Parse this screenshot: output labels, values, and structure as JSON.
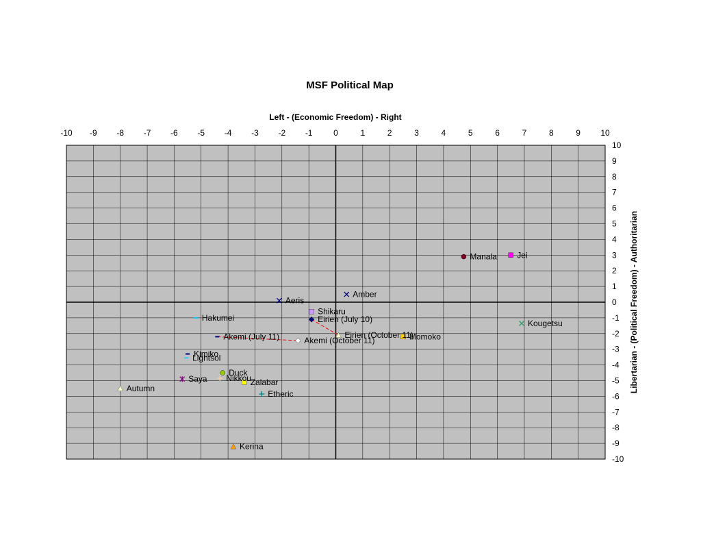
{
  "chart_data": {
    "type": "scatter",
    "title": "MSF Political Map",
    "xlabel": "Left - (Economic Freedom) - Right",
    "ylabel": "Libertarian - (Political Freedom) - Authoritarian",
    "xlim": [
      -10,
      10
    ],
    "ylim": [
      -10,
      10
    ],
    "x_ticks": [
      "-10",
      "-9",
      "-8",
      "-7",
      "-6",
      "-5",
      "-4",
      "-3",
      "-2",
      "-1",
      "0",
      "1",
      "2",
      "3",
      "4",
      "5",
      "6",
      "7",
      "8",
      "9",
      "10"
    ],
    "y_ticks": [
      "10",
      "9",
      "8",
      "7",
      "6",
      "5",
      "4",
      "3",
      "2",
      "1",
      "0",
      "-1",
      "-2",
      "-3",
      "-4",
      "-5",
      "-6",
      "-7",
      "-8",
      "-9",
      "-10"
    ],
    "grid": true,
    "plot_background": "#c0c0c0",
    "points": [
      {
        "name": "Manala",
        "x": 4.75,
        "y": 2.9,
        "marker": "circle",
        "color": "#800020"
      },
      {
        "name": "Jei",
        "x": 6.5,
        "y": 3.0,
        "marker": "square",
        "color": "#ff00ff"
      },
      {
        "name": "Amber",
        "x": 0.4,
        "y": 0.5,
        "marker": "x",
        "color": "#000080"
      },
      {
        "name": "Aeris",
        "x": -2.1,
        "y": 0.1,
        "marker": "x",
        "color": "#000080"
      },
      {
        "name": "Shikaru",
        "x": -0.9,
        "y": -0.6,
        "marker": "square",
        "color": "#cc99ff"
      },
      {
        "name": "Eirien (July 10)",
        "x": -0.9,
        "y": -1.1,
        "marker": "diamond",
        "color": "#000080"
      },
      {
        "name": "Eirien (October 11)",
        "x": 0.1,
        "y": -2.1,
        "marker": "triangle",
        "color": "#ffffcc"
      },
      {
        "name": "Momoko",
        "x": 2.5,
        "y": -2.2,
        "marker": "square",
        "color": "#ffcc00"
      },
      {
        "name": "Kougetsu",
        "x": 6.9,
        "y": -1.35,
        "marker": "x",
        "color": "#339966"
      },
      {
        "name": "Hakumei",
        "x": -5.2,
        "y": -1.0,
        "marker": "dash",
        "color": "#00ccff"
      },
      {
        "name": "Akemi (July 11)",
        "x": -4.4,
        "y": -2.2,
        "marker": "dash",
        "color": "#000080"
      },
      {
        "name": "Akemi (October 11)",
        "x": -1.4,
        "y": -2.45,
        "marker": "diamond",
        "color": "#ffffff"
      },
      {
        "name": "Kimiko",
        "x": -5.5,
        "y": -3.3,
        "marker": "dash",
        "color": "#000080"
      },
      {
        "name": "Lightsol",
        "x": -5.55,
        "y": -3.55,
        "marker": "dash",
        "color": "#33ccff"
      },
      {
        "name": "Duck",
        "x": -4.2,
        "y": -4.5,
        "marker": "circle",
        "color": "#99cc00"
      },
      {
        "name": "Nikkou",
        "x": -4.3,
        "y": -4.85,
        "marker": "plus",
        "color": "#ffcc99"
      },
      {
        "name": "Zalabar",
        "x": -3.4,
        "y": -5.1,
        "marker": "square",
        "color": "#ffff00"
      },
      {
        "name": "Saya",
        "x": -5.7,
        "y": -4.9,
        "marker": "star",
        "color": "#800080"
      },
      {
        "name": "Autumn",
        "x": -8.0,
        "y": -5.5,
        "marker": "triangle",
        "color": "#ffffcc"
      },
      {
        "name": "Etheric",
        "x": -2.75,
        "y": -5.85,
        "marker": "plus",
        "color": "#008080"
      },
      {
        "name": "Kerina",
        "x": -3.8,
        "y": -9.2,
        "marker": "triangle",
        "color": "#ff9900"
      }
    ],
    "movement_lines": [
      {
        "from": "Eirien (July 10)",
        "to": "Eirien (October 11)",
        "color": "#ff0000"
      },
      {
        "from": "Akemi (July 11)",
        "to": "Akemi (October 11)",
        "color": "#ff0000"
      }
    ]
  }
}
